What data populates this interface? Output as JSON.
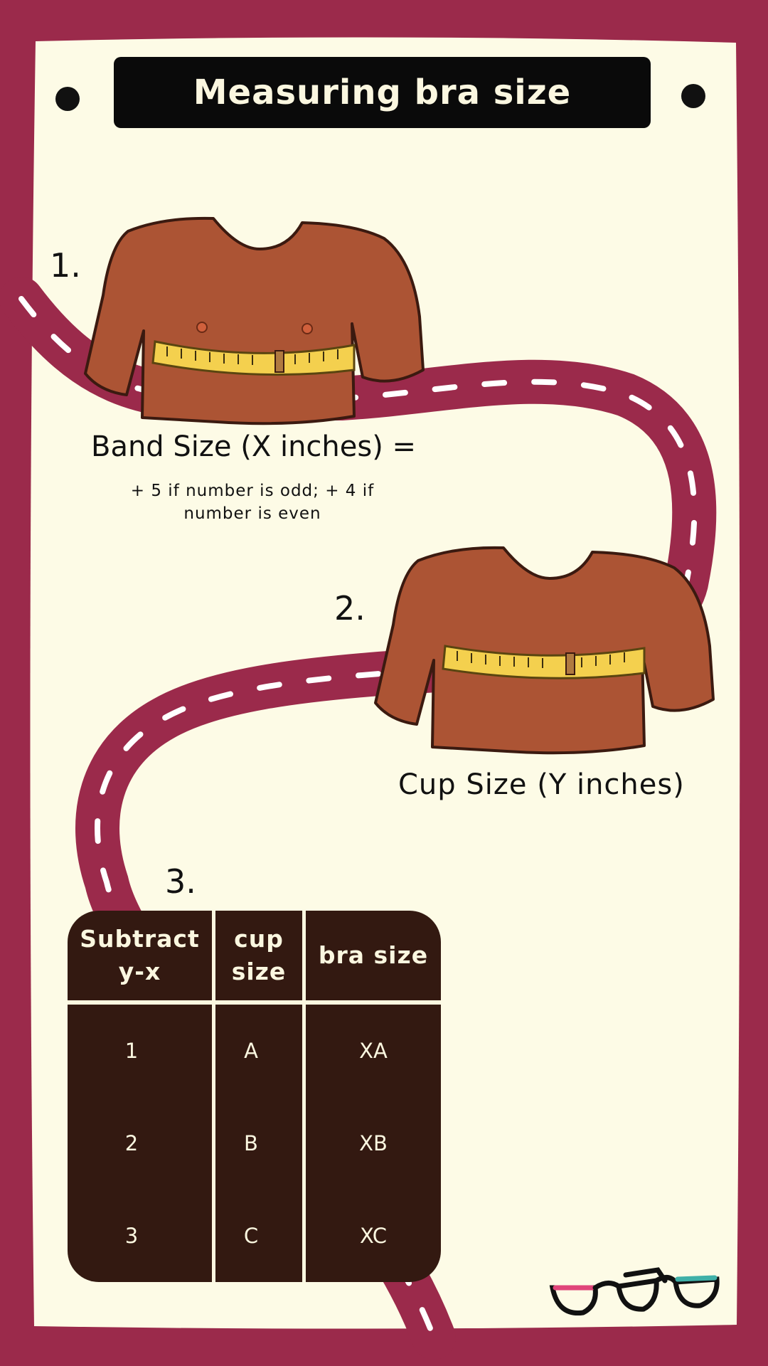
{
  "title": "Measuring bra size",
  "colors": {
    "frame": "#9b2a4b",
    "paper": "#fdfbe6",
    "road": "#9b2a4b",
    "road_dash": "#ffffff",
    "shirt": "#ac5434",
    "tape": "#f4d04e",
    "table_bg": "#331911",
    "table_text": "#fbf7e0"
  },
  "steps": {
    "one": "1.",
    "two": "2.",
    "three": "3."
  },
  "band": {
    "label": "Band Size (X inches) =",
    "note": "+ 5 if number is odd; + 4 if number is even"
  },
  "cup": {
    "label": "Cup Size  (Y inches)"
  },
  "table": {
    "headers": [
      "Subtract y-x",
      "cup size",
      "bra size"
    ],
    "rows": [
      [
        "1",
        "A",
        "XA"
      ],
      [
        "2",
        "B",
        "XB"
      ],
      [
        "3",
        "C",
        "XC"
      ]
    ]
  },
  "icons": [
    "pin-icon",
    "shirt-with-tape-illustration",
    "glasses-logo-icon"
  ]
}
